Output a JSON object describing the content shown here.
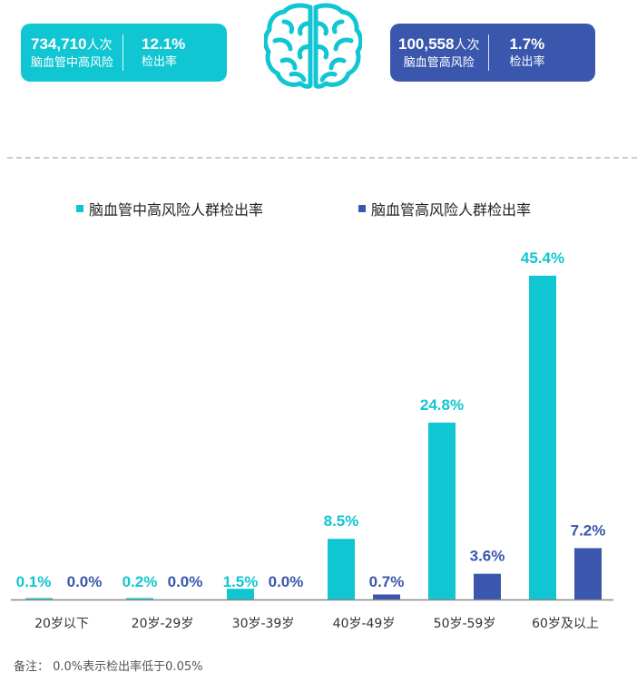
{
  "stats": {
    "left": {
      "count": "734,710",
      "count_unit": "人次",
      "group": "脑血管中高风险",
      "rate": "12.1%",
      "rate_label": "检出率",
      "color": "#10c6d2"
    },
    "right": {
      "count": "100,558",
      "count_unit": "人次",
      "group": "脑血管高风险",
      "rate": "1.7%",
      "rate_label": "检出率",
      "color": "#3a57ad"
    }
  },
  "icon": "brain-icon",
  "footnote": "备注：  0.0%表示检出率低于0.05%",
  "chart_data": {
    "type": "bar",
    "categories": [
      "20岁以下",
      "20岁-29岁",
      "30岁-39岁",
      "40岁-49岁",
      "50岁-59岁",
      "60岁及以上"
    ],
    "series": [
      {
        "name": "脑血管中高风险人群检出率",
        "values": [
          0.1,
          0.2,
          1.5,
          8.5,
          24.8,
          45.4
        ],
        "labels": [
          "0.1%",
          "0.2%",
          "1.5%",
          "8.5%",
          "24.8%",
          "45.4%"
        ],
        "color": "#10c6d2"
      },
      {
        "name": "脑血管高风险人群检出率",
        "values": [
          0.0,
          0.0,
          0.0,
          0.7,
          3.6,
          7.2
        ],
        "labels": [
          "0.0%",
          "0.0%",
          "0.0%",
          "0.7%",
          "3.6%",
          "7.2%"
        ],
        "color": "#3a57ad"
      }
    ],
    "ylim": [
      0,
      45.4
    ],
    "grid": false,
    "legend": "top"
  }
}
